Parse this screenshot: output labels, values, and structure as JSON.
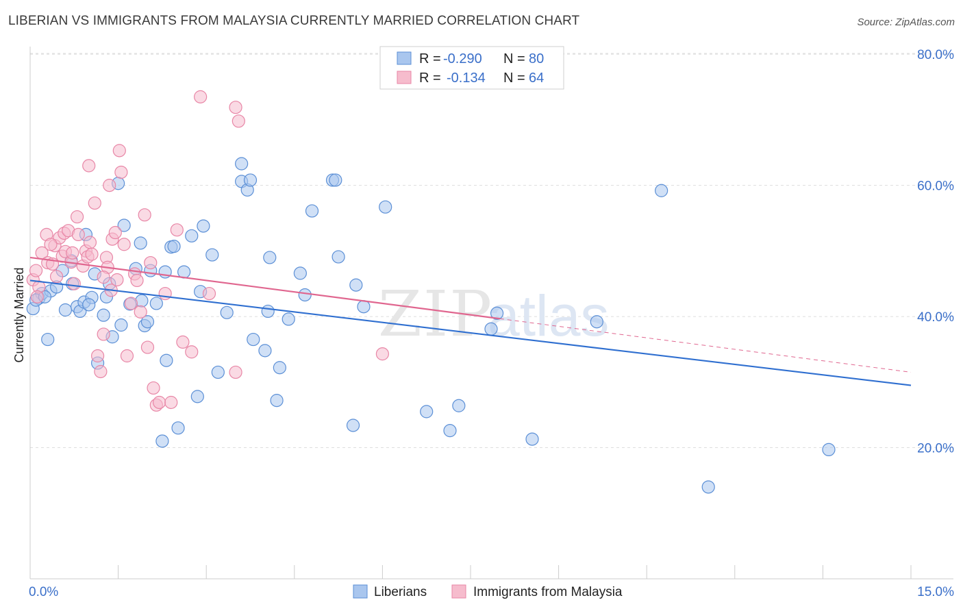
{
  "title": "LIBERIAN VS IMMIGRANTS FROM MALAYSIA CURRENTLY MARRIED CORRELATION CHART",
  "source": "Source: ZipAtlas.com",
  "watermark": {
    "zip": "ZIP",
    "atlas": "atlas"
  },
  "colors": {
    "blue_fill": "#a9c6ee",
    "blue_stroke": "#5b8fd6",
    "blue_line": "#2f6fd0",
    "pink_fill": "#f6bccd",
    "pink_stroke": "#e886a6",
    "pink_line": "#e0668f",
    "grid": "#dddddd",
    "axis_text": "#3a6fc9"
  },
  "legend": {
    "rows": [
      {
        "r_label": "R =",
        "r_value": "-0.290",
        "n_label": "N =",
        "n_value": "80"
      },
      {
        "r_label": "R =",
        "r_value": "-0.134",
        "n_label": "N =",
        "n_value": "64"
      }
    ]
  },
  "chart_data": {
    "type": "scatter",
    "ylabel": "Currently Married",
    "xlabel": "",
    "x_tick_labels": [
      "0.0%",
      "15.0%"
    ],
    "y_tick_labels": [
      "20.0%",
      "40.0%",
      "60.0%",
      "80.0%"
    ],
    "xlim": [
      0,
      15
    ],
    "ylim": [
      0,
      82
    ],
    "y_ticks": [
      20,
      40,
      60,
      80
    ],
    "grid": true,
    "series": [
      {
        "name": "Liberians",
        "color": "blue",
        "trend": {
          "x0": 0,
          "y0": 45.5,
          "x1": 15,
          "y1": 29.5,
          "dashed_from": null
        },
        "points": [
          [
            0.05,
            41.2
          ],
          [
            0.15,
            42.8
          ],
          [
            0.2,
            43.5
          ],
          [
            0.3,
            36.5
          ],
          [
            0.35,
            43.9
          ],
          [
            0.45,
            44.5
          ],
          [
            0.55,
            47.0
          ],
          [
            0.6,
            41.0
          ],
          [
            0.7,
            48.5
          ],
          [
            0.72,
            45.0
          ],
          [
            0.8,
            41.5
          ],
          [
            0.85,
            40.8
          ],
          [
            0.92,
            42.2
          ],
          [
            0.95,
            52.5
          ],
          [
            1.05,
            42.9
          ],
          [
            1.1,
            46.5
          ],
          [
            1.15,
            32.9
          ],
          [
            1.25,
            40.2
          ],
          [
            1.3,
            43.0
          ],
          [
            1.35,
            45.0
          ],
          [
            1.4,
            36.9
          ],
          [
            1.5,
            60.3
          ],
          [
            1.55,
            38.7
          ],
          [
            1.6,
            53.9
          ],
          [
            1.7,
            41.9
          ],
          [
            1.8,
            47.3
          ],
          [
            1.88,
            51.2
          ],
          [
            1.9,
            42.4
          ],
          [
            1.95,
            38.6
          ],
          [
            2.0,
            39.2
          ],
          [
            2.05,
            47.0
          ],
          [
            2.15,
            42.0
          ],
          [
            2.25,
            21.0
          ],
          [
            2.3,
            46.8
          ],
          [
            2.32,
            33.3
          ],
          [
            2.4,
            50.6
          ],
          [
            2.45,
            50.7
          ],
          [
            2.52,
            23.0
          ],
          [
            2.62,
            46.8
          ],
          [
            2.75,
            52.3
          ],
          [
            2.85,
            27.8
          ],
          [
            2.9,
            43.8
          ],
          [
            2.95,
            53.8
          ],
          [
            3.1,
            49.4
          ],
          [
            3.2,
            31.5
          ],
          [
            3.35,
            40.6
          ],
          [
            3.6,
            60.6
          ],
          [
            3.6,
            63.3
          ],
          [
            3.7,
            59.3
          ],
          [
            3.75,
            60.8
          ],
          [
            3.8,
            36.5
          ],
          [
            4.0,
            34.8
          ],
          [
            4.05,
            40.8
          ],
          [
            4.08,
            49.0
          ],
          [
            4.2,
            27.2
          ],
          [
            4.25,
            32.2
          ],
          [
            4.4,
            39.6
          ],
          [
            4.6,
            46.6
          ],
          [
            4.68,
            43.3
          ],
          [
            4.8,
            56.1
          ],
          [
            5.15,
            60.8
          ],
          [
            5.2,
            60.8
          ],
          [
            5.25,
            49.1
          ],
          [
            5.5,
            23.4
          ],
          [
            5.55,
            44.8
          ],
          [
            5.68,
            41.5
          ],
          [
            6.05,
            56.7
          ],
          [
            6.75,
            25.5
          ],
          [
            7.15,
            22.6
          ],
          [
            7.3,
            26.4
          ],
          [
            7.85,
            38.1
          ],
          [
            7.95,
            40.5
          ],
          [
            8.55,
            21.3
          ],
          [
            9.65,
            39.2
          ],
          [
            10.75,
            59.2
          ],
          [
            11.55,
            14.0
          ],
          [
            13.6,
            19.7
          ],
          [
            0.1,
            42.5
          ],
          [
            0.25,
            43.0
          ],
          [
            1.0,
            41.8
          ]
        ]
      },
      {
        "name": "Immigrants from Malaysia",
        "color": "pink",
        "trend": {
          "x0": 0,
          "y0": 49.0,
          "x1": 15,
          "y1": 31.5,
          "dashed_from": 8.0
        },
        "points": [
          [
            0.05,
            45.6
          ],
          [
            0.1,
            47.0
          ],
          [
            0.15,
            44.5
          ],
          [
            0.2,
            49.7
          ],
          [
            0.28,
            52.5
          ],
          [
            0.3,
            48.2
          ],
          [
            0.38,
            48.0
          ],
          [
            0.42,
            50.8
          ],
          [
            0.45,
            46.1
          ],
          [
            0.5,
            52.0
          ],
          [
            0.55,
            49.2
          ],
          [
            0.58,
            52.7
          ],
          [
            0.6,
            49.9
          ],
          [
            0.65,
            53.1
          ],
          [
            0.7,
            48.3
          ],
          [
            0.72,
            49.7
          ],
          [
            0.75,
            45.0
          ],
          [
            0.8,
            55.2
          ],
          [
            0.82,
            52.5
          ],
          [
            0.9,
            47.7
          ],
          [
            0.95,
            50.0
          ],
          [
            0.98,
            49.1
          ],
          [
            1.0,
            63.0
          ],
          [
            1.02,
            51.3
          ],
          [
            1.05,
            49.5
          ],
          [
            1.1,
            57.3
          ],
          [
            1.15,
            34.0
          ],
          [
            1.2,
            31.6
          ],
          [
            1.25,
            37.3
          ],
          [
            1.3,
            49.0
          ],
          [
            1.32,
            47.5
          ],
          [
            1.35,
            60.0
          ],
          [
            1.38,
            44.0
          ],
          [
            1.4,
            51.8
          ],
          [
            1.45,
            52.8
          ],
          [
            1.48,
            45.6
          ],
          [
            1.52,
            65.3
          ],
          [
            1.55,
            62.0
          ],
          [
            1.6,
            51.0
          ],
          [
            1.65,
            34.0
          ],
          [
            1.72,
            42.0
          ],
          [
            1.78,
            46.5
          ],
          [
            1.82,
            45.5
          ],
          [
            1.88,
            40.7
          ],
          [
            1.95,
            55.5
          ],
          [
            2.0,
            35.3
          ],
          [
            2.05,
            48.2
          ],
          [
            2.1,
            29.1
          ],
          [
            2.15,
            26.5
          ],
          [
            2.2,
            26.9
          ],
          [
            2.3,
            43.5
          ],
          [
            2.4,
            26.9
          ],
          [
            2.5,
            53.2
          ],
          [
            2.6,
            36.1
          ],
          [
            2.75,
            34.6
          ],
          [
            2.9,
            73.5
          ],
          [
            3.05,
            43.5
          ],
          [
            3.5,
            31.5
          ],
          [
            3.5,
            71.9
          ],
          [
            3.55,
            69.8
          ],
          [
            6.0,
            34.3
          ],
          [
            0.12,
            43.0
          ],
          [
            0.35,
            51.0
          ],
          [
            1.25,
            46.0
          ]
        ]
      }
    ]
  },
  "bottom_legend": [
    {
      "label": "Liberians"
    },
    {
      "label": "Immigrants from Malaysia"
    }
  ]
}
